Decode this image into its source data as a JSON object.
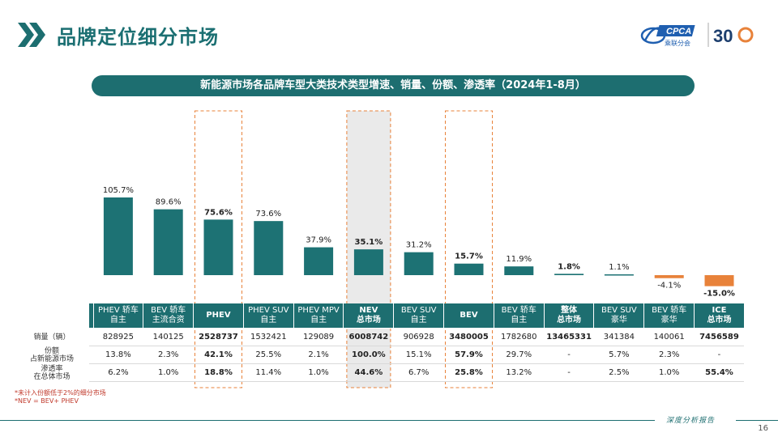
{
  "page": {
    "title": "品牌定位细分市场",
    "number": "16",
    "footer": "深度分析报告"
  },
  "logo": {
    "cpca": "CPCA",
    "cn": "乘联分会",
    "thirty": "30"
  },
  "banner": "新能源市场各品牌车型大类技术类型增速、销量、份额、渗透率（2024年1-8月）",
  "colors": {
    "bar": "#1d7274",
    "negative": "#e8823a",
    "header": "#1d6e70",
    "highlight": "#e8823a",
    "shade": "#d9d9d9"
  },
  "chart_data": {
    "type": "bar",
    "categories": [
      "PHEV 轿车 自主",
      "BEV 轿车 主流合资",
      "PHEV",
      "PHEV SUV 自主",
      "PHEV MPV 自主",
      "NEV 总市场",
      "BEV SUV 自主",
      "BEV",
      "BEV 轿车 自主",
      "整体 总市场",
      "BEV SUV 豪华",
      "BEV 轿车 豪华",
      "ICE 总市场"
    ],
    "values": [
      105.7,
      89.6,
      75.6,
      73.6,
      37.9,
      35.1,
      31.2,
      15.7,
      11.9,
      1.8,
      1.1,
      -4.1,
      -15.0
    ],
    "labels": [
      "105.7%",
      "89.6%",
      "75.6%",
      "73.6%",
      "37.9%",
      "35.1%",
      "31.2%",
      "15.7%",
      "11.9%",
      "1.8%",
      "1.1%",
      "-4.1%",
      "-15.0%"
    ],
    "bold_labels": [
      false,
      false,
      true,
      false,
      false,
      true,
      false,
      true,
      false,
      true,
      false,
      false,
      true
    ],
    "highlighted_orange_box": [
      2,
      7
    ],
    "highlighted_grey_box": [
      5
    ],
    "ylim": [
      -15,
      110
    ]
  },
  "table": {
    "headers": [
      [
        "PHEV 轿车",
        "自主"
      ],
      [
        "BEV 轿车",
        "主流合资"
      ],
      [
        "PHEV",
        ""
      ],
      [
        "PHEV SUV",
        "自主"
      ],
      [
        "PHEV MPV",
        "自主"
      ],
      [
        "NEV",
        "总市场"
      ],
      [
        "BEV SUV",
        "自主"
      ],
      [
        "BEV",
        ""
      ],
      [
        "BEV 轿车",
        "自主"
      ],
      [
        "整体",
        "总市场"
      ],
      [
        "BEV SUV",
        "豪华"
      ],
      [
        "BEV 轿车",
        "豪华"
      ],
      [
        "ICE",
        "总市场"
      ]
    ],
    "bold_headers": [
      false,
      false,
      true,
      false,
      false,
      true,
      false,
      true,
      false,
      true,
      false,
      false,
      true
    ],
    "rows": [
      {
        "label1": "销量（辆）",
        "label2": "",
        "cells": [
          "828925",
          "140125",
          "2528737",
          "1532421",
          "129089",
          "6008742",
          "906928",
          "3480005",
          "1782680",
          "13465331",
          "341384",
          "140061",
          "7456589"
        ],
        "bold": [
          false,
          false,
          true,
          false,
          false,
          true,
          false,
          true,
          false,
          true,
          false,
          false,
          true
        ]
      },
      {
        "label1": "份额",
        "label2": "占新能源市场",
        "cells": [
          "13.8%",
          "2.3%",
          "42.1%",
          "25.5%",
          "2.1%",
          "100.0%",
          "15.1%",
          "57.9%",
          "29.7%",
          "-",
          "5.7%",
          "2.3%",
          "-"
        ],
        "bold": [
          false,
          false,
          true,
          false,
          false,
          true,
          false,
          true,
          false,
          false,
          false,
          false,
          false
        ]
      },
      {
        "label1": "渗透率",
        "label2": "在总体市场",
        "cells": [
          "6.2%",
          "1.0%",
          "18.8%",
          "11.4%",
          "1.0%",
          "44.6%",
          "6.7%",
          "25.8%",
          "13.2%",
          "-",
          "2.5%",
          "1.0%",
          "55.4%"
        ],
        "bold": [
          false,
          false,
          true,
          false,
          false,
          true,
          false,
          true,
          false,
          false,
          false,
          false,
          true
        ]
      }
    ]
  },
  "notes": [
    "*未计入份额低于2%的细分市场",
    "*NEV = BEV+ PHEV"
  ]
}
